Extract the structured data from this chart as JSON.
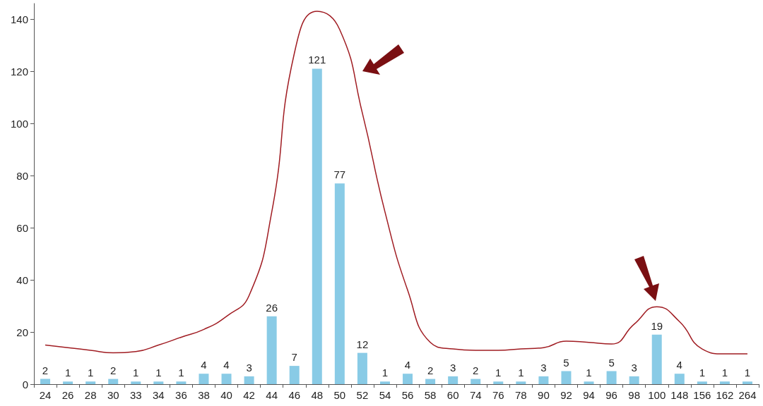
{
  "chart_data": {
    "type": "bar",
    "categories": [
      "24",
      "26",
      "28",
      "30",
      "33",
      "34",
      "36",
      "38",
      "40",
      "42",
      "44",
      "46",
      "48",
      "50",
      "52",
      "54",
      "56",
      "58",
      "60",
      "74",
      "76",
      "78",
      "90",
      "92",
      "94",
      "96",
      "98",
      "100",
      "148",
      "156",
      "162",
      "264"
    ],
    "ylim": [
      0,
      146
    ],
    "yticks": [
      0,
      20,
      40,
      60,
      80,
      100,
      120,
      140
    ],
    "grid": false,
    "series": [
      {
        "color": "#89cbe6",
        "data_labels": true,
        "values": [
          2,
          1,
          1,
          2,
          1,
          1,
          1,
          4,
          4,
          3,
          26,
          7,
          121,
          77,
          12,
          1,
          4,
          2,
          3,
          2,
          1,
          1,
          3,
          5,
          1,
          5,
          3,
          19,
          4,
          1,
          1,
          1
        ]
      },
      {
        "type": "line",
        "color": "#a01c22",
        "marker": "none",
        "line_style": "solid",
        "values": [
          15,
          14,
          13,
          12,
          12.5,
          15,
          18,
          21,
          26,
          34,
          66,
          127,
          143,
          136,
          104,
          66,
          36,
          16,
          13.5,
          13,
          13,
          13.5,
          14,
          16.5,
          16,
          15.4,
          23,
          29.7,
          24,
          13.5,
          11.6,
          11.6
        ]
      }
    ]
  }
}
